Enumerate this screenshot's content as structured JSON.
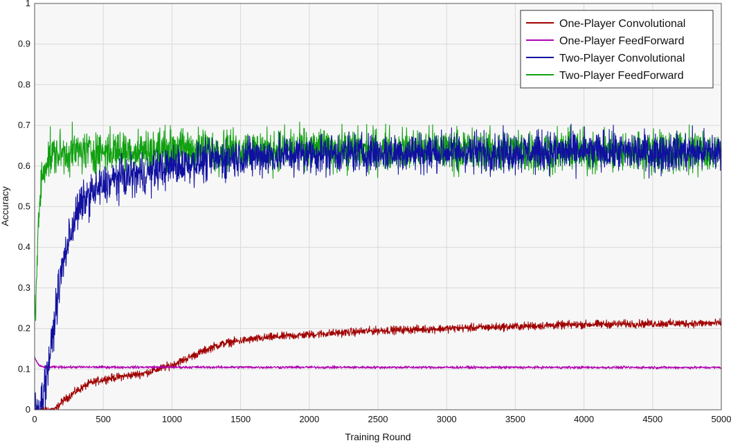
{
  "chart_data": {
    "type": "line",
    "xlabel": "Training Round",
    "ylabel": "Accuracy",
    "xlim": [
      0,
      5000
    ],
    "ylim": [
      0,
      1
    ],
    "x_ticks": [
      0,
      500,
      1000,
      1500,
      2000,
      2500,
      3000,
      3500,
      4000,
      4500,
      5000
    ],
    "y_ticks": [
      0,
      0.1,
      0.2,
      0.3,
      0.4,
      0.5,
      0.6,
      0.7,
      0.8,
      0.9,
      1
    ],
    "x_tick_labels": [
      "0",
      "500",
      "1000",
      "1500",
      "2000",
      "2500",
      "3000",
      "3500",
      "4000",
      "4500",
      "5000"
    ],
    "y_tick_labels": [
      "0",
      "0.1",
      "0.2",
      "0.3",
      "0.4",
      "0.5",
      "0.6",
      "0.7",
      "0.8",
      "0.9",
      "1"
    ],
    "grid": true,
    "legend_position": "top-right",
    "series": [
      {
        "name": "One-Player Convolutional",
        "color": "#a00000",
        "x": [
          0,
          150,
          200,
          300,
          400,
          500,
          600,
          700,
          800,
          900,
          1000,
          1100,
          1200,
          1300,
          1400,
          1500,
          1700,
          2000,
          2500,
          3000,
          3500,
          4000,
          4500,
          5000
        ],
        "y": [
          0,
          0,
          0.02,
          0.045,
          0.065,
          0.075,
          0.08,
          0.085,
          0.09,
          0.1,
          0.11,
          0.125,
          0.14,
          0.155,
          0.165,
          0.17,
          0.178,
          0.185,
          0.195,
          0.2,
          0.205,
          0.21,
          0.212,
          0.213
        ],
        "noise": 0.006
      },
      {
        "name": "One-Player FeedForward",
        "color": "#b000b0",
        "x": [
          0,
          30,
          60,
          100,
          5000
        ],
        "y": [
          0.128,
          0.11,
          0.105,
          0.105,
          0.104
        ],
        "noise": 0.002
      },
      {
        "name": "Two-Player Convolutional",
        "color": "#1010a0",
        "x": [
          0,
          40,
          80,
          120,
          160,
          200,
          250,
          300,
          350,
          400,
          500,
          600,
          700,
          800,
          900,
          1000,
          1200,
          1400,
          1700,
          2000,
          3000,
          4000,
          5000
        ],
        "y": [
          0,
          0.01,
          0.07,
          0.15,
          0.26,
          0.35,
          0.42,
          0.48,
          0.51,
          0.53,
          0.55,
          0.57,
          0.575,
          0.58,
          0.59,
          0.6,
          0.61,
          0.62,
          0.625,
          0.63,
          0.635,
          0.635,
          0.635
        ],
        "noise": 0.03
      },
      {
        "name": "Two-Player FeedForward",
        "color": "#10a010",
        "x": [
          0,
          10,
          20,
          35,
          50,
          70,
          100,
          150,
          300,
          1000,
          2000,
          3000,
          4000,
          5000
        ],
        "y": [
          0.22,
          0.28,
          0.38,
          0.5,
          0.56,
          0.6,
          0.62,
          0.63,
          0.635,
          0.64,
          0.64,
          0.64,
          0.635,
          0.635
        ],
        "noise": 0.032
      }
    ]
  }
}
